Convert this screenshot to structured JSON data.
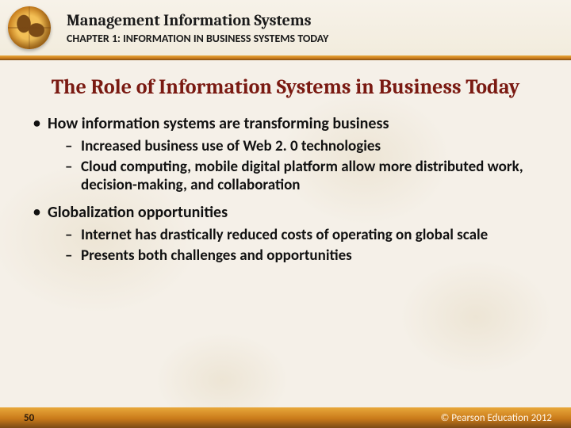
{
  "header": {
    "book_title": "Management Information Systems",
    "chapter": "CHAPTER 1: INFORMATION IN BUSINESS SYSTEMS TODAY"
  },
  "slide": {
    "title": "The Role of Information Systems in Business Today",
    "bullets": [
      {
        "text": "How information systems are transforming business",
        "sub": [
          "Increased business use of Web 2. 0 technologies",
          "Cloud computing, mobile digital platform allow more distributed work, decision-making, and collaboration"
        ]
      },
      {
        "text": "Globalization opportunities",
        "sub": [
          "Internet has drastically reduced costs of operating on global scale",
          "Presents both challenges and opportunities"
        ]
      }
    ]
  },
  "footer": {
    "page_number": "50",
    "copyright": "©  Pearson Education 2012"
  },
  "style": {
    "title_color": "#7a1a12",
    "accent_gradient_top": "#e8a83a",
    "accent_gradient_bottom": "#7a4a15",
    "background_color": "#f5f0e8",
    "body_font": "Calibri",
    "title_font": "Cambria",
    "title_fontsize_pt": 20,
    "body_fontsize_pt": 15
  }
}
